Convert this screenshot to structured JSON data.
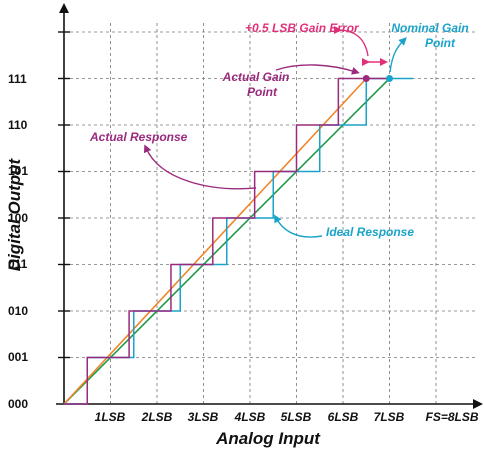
{
  "axes": {
    "x_title": "Analog Input",
    "y_title": "Digital Output",
    "x_ticks": [
      "1LSB",
      "2LSB",
      "3LSB",
      "4LSB",
      "5LSB",
      "6LSB",
      "7LSB",
      "FS=8LSB"
    ],
    "y_ticks": [
      "000",
      "001",
      "010",
      "011",
      "100",
      "101",
      "110",
      "111"
    ]
  },
  "annotations": {
    "gain_error": "+0.5 LSB Gain Error",
    "nominal_gain_point_line1": "Nominal Gain",
    "nominal_gain_point_line2": "Point",
    "actual_gain_point_line1": "Actual Gain",
    "actual_gain_point_line2": "Point",
    "actual_response": "Actual Response",
    "ideal_response": "Ideal Response"
  },
  "colors": {
    "actual": "#9a2a7e",
    "ideal": "#1aa3c9",
    "ideal_line": "#1f9a4a",
    "actual_line": "#f0852a",
    "gain_error": "#e0307a",
    "axis": "#111111"
  },
  "transfer": {
    "ideal_transitions_lsb": [
      0.5,
      1.5,
      2.5,
      3.5,
      4.5,
      5.5,
      6.5
    ],
    "actual_transitions_lsb": [
      0.5,
      1.4,
      2.3,
      3.2,
      4.1,
      5.0,
      5.9
    ],
    "ideal_gain_point_lsb": 7.0,
    "actual_gain_point_lsb": 6.5,
    "gain_error_lsb": 0.5
  }
}
